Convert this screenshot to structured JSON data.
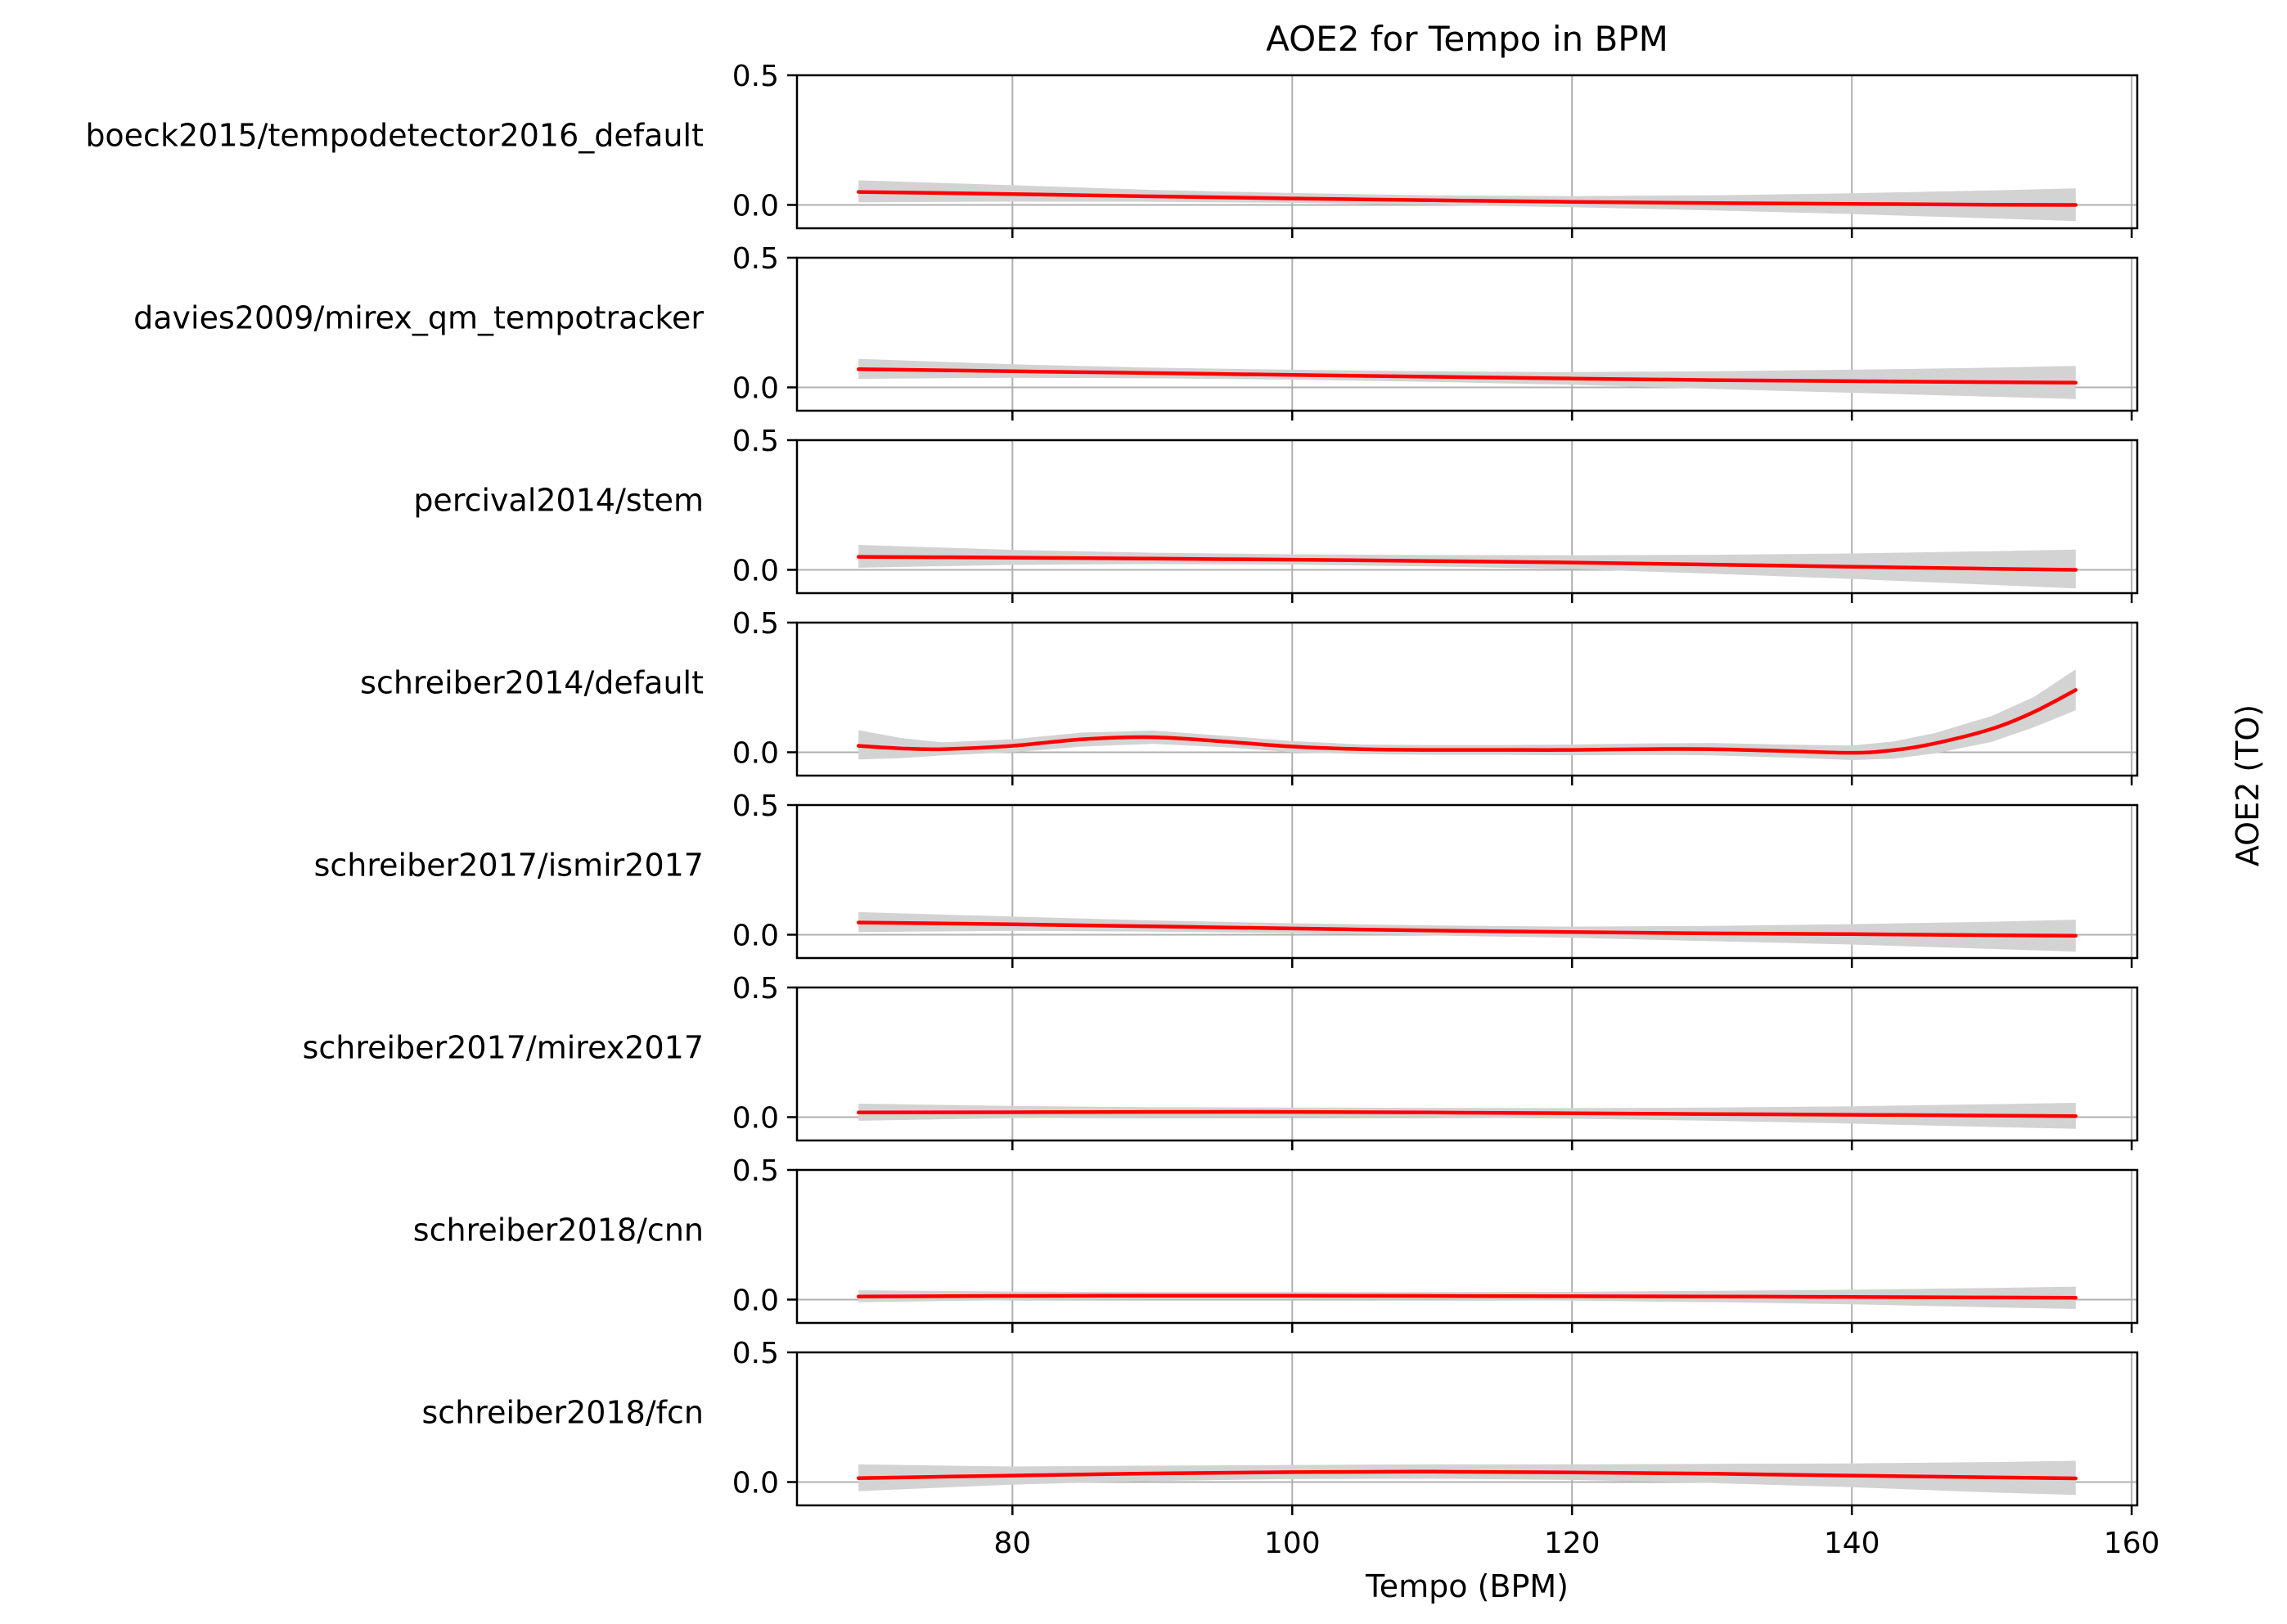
{
  "chart_data": {
    "type": "line",
    "title": "AOE2 for Tempo in BPM",
    "xlabel": "Tempo (BPM)",
    "ylabel": "AOE2 (TO)",
    "xlim": [
      64.6,
      160.4
    ],
    "ylim": [
      -0.09,
      0.5
    ],
    "x_ticks": [
      80,
      100,
      120,
      140,
      160
    ],
    "x_tick_labels": [
      "80",
      "100",
      "120",
      "140",
      "160"
    ],
    "y_ticks": [
      0.0,
      0.5
    ],
    "y_tick_labels": [
      "0.0",
      "0.5"
    ],
    "grid": true,
    "line_color": "#ff0000",
    "band_color": "#d3d3d3",
    "grid_color": "#b0b0b0",
    "panels": [
      {
        "label": "boeck2015/tempodetector2016_default",
        "x": [
          69,
          80,
          90,
          100,
          110,
          120,
          130,
          140,
          150,
          156
        ],
        "y": [
          0.05,
          0.042,
          0.033,
          0.025,
          0.018,
          0.012,
          0.007,
          0.004,
          0.001,
          0.0
        ],
        "lower": [
          0.01,
          0.013,
          0.012,
          0.008,
          0.0,
          -0.009,
          -0.021,
          -0.035,
          -0.052,
          -0.062
        ],
        "upper": [
          0.095,
          0.076,
          0.058,
          0.046,
          0.037,
          0.034,
          0.037,
          0.045,
          0.056,
          0.064
        ]
      },
      {
        "label": "davies2009/mirex_qm_tempotracker",
        "x": [
          69,
          80,
          90,
          100,
          110,
          120,
          130,
          140,
          150,
          156
        ],
        "y": [
          0.07,
          0.062,
          0.055,
          0.048,
          0.041,
          0.034,
          0.028,
          0.024,
          0.02,
          0.018
        ],
        "lower": [
          0.033,
          0.037,
          0.035,
          0.03,
          0.021,
          0.01,
          -0.006,
          -0.021,
          -0.036,
          -0.045
        ],
        "upper": [
          0.11,
          0.089,
          0.076,
          0.068,
          0.062,
          0.059,
          0.062,
          0.068,
          0.076,
          0.083
        ]
      },
      {
        "label": "percival2014/stem",
        "x": [
          69,
          80,
          90,
          100,
          110,
          120,
          130,
          140,
          150,
          156
        ],
        "y": [
          0.05,
          0.047,
          0.043,
          0.039,
          0.034,
          0.028,
          0.02,
          0.012,
          0.004,
          0.0
        ],
        "lower": [
          0.008,
          0.019,
          0.022,
          0.02,
          0.013,
          0.003,
          -0.015,
          -0.035,
          -0.058,
          -0.072
        ],
        "upper": [
          0.096,
          0.077,
          0.066,
          0.06,
          0.057,
          0.056,
          0.058,
          0.063,
          0.072,
          0.078
        ]
      },
      {
        "label": "schreiber2014/default",
        "x": [
          69,
          72,
          75,
          80,
          85,
          90,
          95,
          100,
          105,
          110,
          115,
          120,
          125,
          130,
          135,
          140,
          143,
          146,
          150,
          153,
          156
        ],
        "y": [
          0.025,
          0.015,
          0.012,
          0.025,
          0.05,
          0.058,
          0.042,
          0.022,
          0.012,
          0.009,
          0.009,
          0.009,
          0.012,
          0.012,
          0.005,
          -0.002,
          0.008,
          0.035,
          0.09,
          0.155,
          0.24
        ],
        "lower": [
          -0.028,
          -0.023,
          -0.012,
          0.0,
          0.022,
          0.032,
          0.02,
          0.0,
          -0.007,
          -0.01,
          -0.01,
          -0.012,
          -0.01,
          -0.012,
          -0.02,
          -0.03,
          -0.025,
          -0.004,
          0.04,
          0.096,
          0.162
        ],
        "upper": [
          0.085,
          0.055,
          0.038,
          0.05,
          0.076,
          0.084,
          0.064,
          0.043,
          0.03,
          0.028,
          0.028,
          0.03,
          0.034,
          0.036,
          0.03,
          0.026,
          0.042,
          0.075,
          0.14,
          0.213,
          0.32
        ]
      },
      {
        "label": "schreiber2017/ismir2017",
        "x": [
          69,
          80,
          90,
          100,
          110,
          120,
          130,
          140,
          150,
          156
        ],
        "y": [
          0.047,
          0.04,
          0.032,
          0.024,
          0.016,
          0.01,
          0.005,
          0.002,
          -0.002,
          -0.004
        ],
        "lower": [
          0.01,
          0.015,
          0.012,
          0.006,
          -0.003,
          -0.012,
          -0.025,
          -0.038,
          -0.055,
          -0.065
        ],
        "upper": [
          0.087,
          0.07,
          0.055,
          0.044,
          0.036,
          0.031,
          0.034,
          0.041,
          0.05,
          0.058
        ]
      },
      {
        "label": "schreiber2017/mirex2017",
        "x": [
          69,
          80,
          90,
          100,
          110,
          120,
          130,
          140,
          150,
          156
        ],
        "y": [
          0.018,
          0.019,
          0.02,
          0.02,
          0.018,
          0.015,
          0.012,
          0.009,
          0.006,
          0.004
        ],
        "lower": [
          -0.014,
          -0.004,
          0.0,
          0.001,
          -0.001,
          -0.006,
          -0.014,
          -0.025,
          -0.038,
          -0.045
        ],
        "upper": [
          0.052,
          0.043,
          0.038,
          0.037,
          0.036,
          0.035,
          0.037,
          0.042,
          0.05,
          0.055
        ]
      },
      {
        "label": "schreiber2018/cnn",
        "x": [
          69,
          80,
          90,
          100,
          110,
          120,
          130,
          140,
          150,
          156
        ],
        "y": [
          0.012,
          0.014,
          0.015,
          0.015,
          0.014,
          0.013,
          0.012,
          0.01,
          0.008,
          0.007
        ],
        "lower": [
          -0.01,
          -0.002,
          0.001,
          0.001,
          0.0,
          -0.004,
          -0.01,
          -0.018,
          -0.03,
          -0.036
        ],
        "upper": [
          0.036,
          0.031,
          0.029,
          0.029,
          0.029,
          0.03,
          0.034,
          0.038,
          0.045,
          0.05
        ]
      },
      {
        "label": "schreiber2018/fcn",
        "x": [
          69,
          80,
          90,
          100,
          110,
          120,
          130,
          140,
          150,
          156
        ],
        "y": [
          0.015,
          0.025,
          0.033,
          0.038,
          0.04,
          0.037,
          0.032,
          0.025,
          0.018,
          0.014
        ],
        "lower": [
          -0.035,
          -0.01,
          0.004,
          0.012,
          0.013,
          0.008,
          -0.004,
          -0.02,
          -0.04,
          -0.05
        ],
        "upper": [
          0.068,
          0.06,
          0.063,
          0.066,
          0.068,
          0.068,
          0.07,
          0.072,
          0.077,
          0.082
        ]
      }
    ]
  }
}
